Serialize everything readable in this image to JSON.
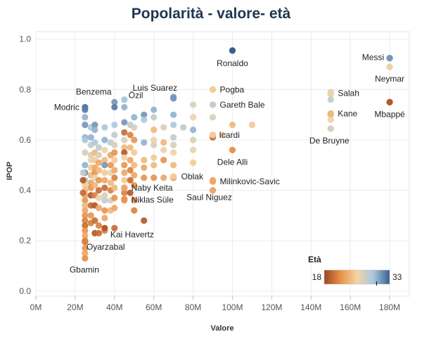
{
  "chart_data": {
    "type": "scatter",
    "title": "Popolarità - valore- età",
    "xlabel": "Valore",
    "ylabel": "IPOP",
    "xlim": [
      0,
      190
    ],
    "ylim": [
      -0.02,
      1.03
    ],
    "x_ticks": [
      0,
      20,
      40,
      60,
      80,
      100,
      120,
      140,
      160,
      180
    ],
    "x_tick_labels": [
      "0M",
      "20M",
      "40M",
      "60M",
      "80M",
      "100M",
      "120M",
      "140M",
      "160M",
      "180M"
    ],
    "y_ticks": [
      0.0,
      0.2,
      0.4,
      0.6,
      0.8,
      1.0
    ],
    "y_tick_labels": [
      "0.0",
      "0.2",
      "0.4",
      "0.6",
      "0.8",
      "1.0"
    ],
    "grid": true,
    "color_legend": {
      "title": "Età",
      "min": 18,
      "max": 33,
      "marker": 30,
      "placement": "bottom-right",
      "colors": [
        "#a0441f",
        "#e8914a",
        "#f6d3a3",
        "#a8c8e0",
        "#3a5f8e"
      ]
    },
    "annotated_points": [
      {
        "label": "Ronaldo",
        "x": 100,
        "y": 0.955,
        "age": 33
      },
      {
        "label": "Messi",
        "x": 180,
        "y": 0.925,
        "age": 31
      },
      {
        "label": "Neymar",
        "x": 180,
        "y": 0.89,
        "age": 26
      },
      {
        "label": "Benzema",
        "x": 25,
        "y": 0.73,
        "age": 30
      },
      {
        "label": "Modric",
        "x": 25,
        "y": 0.73,
        "age": 32
      },
      {
        "label": "Luis Suarez",
        "x": 70,
        "y": 0.765,
        "age": 31
      },
      {
        "label": "Özil",
        "x": 45,
        "y": 0.76,
        "age": 29
      },
      {
        "label": "Pogba",
        "x": 90,
        "y": 0.8,
        "age": 25
      },
      {
        "label": "Gareth Bale",
        "x": 90,
        "y": 0.74,
        "age": 28
      },
      {
        "label": "Salah",
        "x": 150,
        "y": 0.785,
        "age": 26
      },
      {
        "label": "Kane",
        "x": 150,
        "y": 0.705,
        "age": 24
      },
      {
        "label": "Mbappé",
        "x": 180,
        "y": 0.75,
        "age": 19
      },
      {
        "label": "De Bruyne",
        "x": 150,
        "y": 0.645,
        "age": 27
      },
      {
        "label": "Icardi",
        "x": 90,
        "y": 0.62,
        "age": 25
      },
      {
        "label": "Dele Alli",
        "x": 100,
        "y": 0.56,
        "age": 22
      },
      {
        "label": "Oblak",
        "x": 70,
        "y": 0.455,
        "age": 25
      },
      {
        "label": "Milinkovic-Savic",
        "x": 90,
        "y": 0.435,
        "age": 23
      },
      {
        "label": "Naby Keita",
        "x": 45,
        "y": 0.41,
        "age": 23
      },
      {
        "label": "Saul Niguez",
        "x": 90,
        "y": 0.4,
        "age": 23
      },
      {
        "label": "Niklas Süle",
        "x": 45,
        "y": 0.365,
        "age": 22
      },
      {
        "label": "Kai Havertz",
        "x": 35,
        "y": 0.25,
        "age": 19
      },
      {
        "label": "Oyarzabal",
        "x": 25,
        "y": 0.195,
        "age": 21
      },
      {
        "label": "Gbamin",
        "x": 25,
        "y": 0.13,
        "age": 22
      }
    ],
    "points": [
      [
        25,
        0.72,
        32
      ],
      [
        25,
        0.69,
        30
      ],
      [
        25,
        0.66,
        31
      ],
      [
        25,
        0.61,
        30
      ],
      [
        25,
        0.6,
        29
      ],
      [
        25,
        0.55,
        27
      ],
      [
        25,
        0.5,
        30
      ],
      [
        25,
        0.47,
        31
      ],
      [
        25,
        0.44,
        29
      ],
      [
        25,
        0.42,
        25
      ],
      [
        25,
        0.4,
        24
      ],
      [
        25,
        0.38,
        23
      ],
      [
        25,
        0.36,
        22
      ],
      [
        25,
        0.34,
        24
      ],
      [
        25,
        0.32,
        23
      ],
      [
        25,
        0.3,
        22
      ],
      [
        25,
        0.28,
        21
      ],
      [
        25,
        0.26,
        20
      ],
      [
        25,
        0.24,
        22
      ],
      [
        25,
        0.22,
        23
      ],
      [
        25,
        0.2,
        21
      ],
      [
        25,
        0.17,
        22
      ],
      [
        25,
        0.15,
        23
      ],
      [
        24,
        0.47,
        28
      ],
      [
        24,
        0.44,
        19
      ],
      [
        24,
        0.39,
        20
      ],
      [
        28,
        0.65,
        29
      ],
      [
        28,
        0.61,
        30
      ],
      [
        28,
        0.58,
        28
      ],
      [
        28,
        0.54,
        27
      ],
      [
        28,
        0.52,
        26
      ],
      [
        28,
        0.49,
        25
      ],
      [
        28,
        0.46,
        24
      ],
      [
        28,
        0.43,
        23
      ],
      [
        28,
        0.41,
        22
      ],
      [
        28,
        0.38,
        19
      ],
      [
        28,
        0.34,
        20
      ],
      [
        28,
        0.3,
        22
      ],
      [
        28,
        0.27,
        21
      ],
      [
        30,
        0.66,
        31
      ],
      [
        30,
        0.64,
        30
      ],
      [
        30,
        0.59,
        29
      ],
      [
        30,
        0.55,
        24
      ],
      [
        30,
        0.52,
        25
      ],
      [
        30,
        0.49,
        23
      ],
      [
        30,
        0.47,
        22
      ],
      [
        30,
        0.45,
        26
      ],
      [
        30,
        0.42,
        24
      ],
      [
        30,
        0.38,
        21
      ],
      [
        30,
        0.34,
        19
      ],
      [
        30,
        0.28,
        20
      ],
      [
        30,
        0.23,
        19
      ],
      [
        32,
        0.57,
        28
      ],
      [
        32,
        0.54,
        27
      ],
      [
        32,
        0.51,
        23
      ],
      [
        32,
        0.48,
        24
      ],
      [
        32,
        0.44,
        22
      ],
      [
        32,
        0.4,
        20
      ],
      [
        32,
        0.37,
        26
      ],
      [
        32,
        0.33,
        23
      ],
      [
        32,
        0.26,
        21
      ],
      [
        32,
        0.23,
        20
      ],
      [
        35,
        0.65,
        29
      ],
      [
        35,
        0.6,
        30
      ],
      [
        35,
        0.56,
        26
      ],
      [
        35,
        0.52,
        24
      ],
      [
        35,
        0.5,
        31
      ],
      [
        35,
        0.47,
        25
      ],
      [
        35,
        0.44,
        23
      ],
      [
        35,
        0.41,
        20
      ],
      [
        35,
        0.38,
        27
      ],
      [
        35,
        0.36,
        28
      ],
      [
        35,
        0.32,
        22
      ],
      [
        35,
        0.29,
        23
      ],
      [
        35,
        0.24,
        21
      ],
      [
        38,
        0.59,
        28
      ],
      [
        38,
        0.54,
        23
      ],
      [
        38,
        0.5,
        22
      ],
      [
        38,
        0.47,
        26
      ],
      [
        38,
        0.43,
        24
      ],
      [
        38,
        0.4,
        21
      ],
      [
        38,
        0.36,
        27
      ],
      [
        38,
        0.32,
        24
      ],
      [
        40,
        0.75,
        31
      ],
      [
        40,
        0.73,
        32
      ],
      [
        40,
        0.66,
        29
      ],
      [
        40,
        0.62,
        28
      ],
      [
        40,
        0.58,
        27
      ],
      [
        40,
        0.55,
        22
      ],
      [
        40,
        0.52,
        25
      ],
      [
        40,
        0.48,
        23
      ],
      [
        40,
        0.45,
        21
      ],
      [
        40,
        0.41,
        24
      ],
      [
        40,
        0.37,
        22
      ],
      [
        40,
        0.33,
        23
      ],
      [
        40,
        0.25,
        20
      ],
      [
        45,
        0.76,
        29
      ],
      [
        45,
        0.73,
        30
      ],
      [
        45,
        0.67,
        31
      ],
      [
        45,
        0.63,
        20
      ],
      [
        45,
        0.6,
        27
      ],
      [
        45,
        0.57,
        24
      ],
      [
        45,
        0.55,
        19
      ],
      [
        45,
        0.53,
        26
      ],
      [
        45,
        0.5,
        22
      ],
      [
        45,
        0.47,
        23
      ],
      [
        45,
        0.44,
        25
      ],
      [
        45,
        0.41,
        18
      ],
      [
        45,
        0.39,
        21
      ],
      [
        45,
        0.36,
        22
      ],
      [
        48,
        0.66,
        28
      ],
      [
        48,
        0.62,
        21
      ],
      [
        48,
        0.57,
        24
      ],
      [
        48,
        0.52,
        23
      ],
      [
        48,
        0.48,
        21
      ],
      [
        48,
        0.44,
        20
      ],
      [
        48,
        0.39,
        19
      ],
      [
        50,
        0.69,
        30
      ],
      [
        50,
        0.65,
        27
      ],
      [
        50,
        0.6,
        22
      ],
      [
        50,
        0.55,
        25
      ],
      [
        50,
        0.5,
        24
      ],
      [
        50,
        0.46,
        23
      ],
      [
        50,
        0.42,
        22
      ],
      [
        50,
        0.36,
        22
      ],
      [
        50,
        0.32,
        21
      ],
      [
        55,
        0.7,
        31
      ],
      [
        55,
        0.68,
        29
      ],
      [
        55,
        0.59,
        30
      ],
      [
        55,
        0.52,
        24
      ],
      [
        55,
        0.49,
        23
      ],
      [
        55,
        0.45,
        22
      ],
      [
        55,
        0.28,
        19
      ],
      [
        60,
        0.72,
        30
      ],
      [
        60,
        0.69,
        28
      ],
      [
        60,
        0.64,
        24
      ],
      [
        60,
        0.6,
        26
      ],
      [
        60,
        0.58,
        27
      ],
      [
        60,
        0.53,
        25
      ],
      [
        60,
        0.5,
        24
      ],
      [
        60,
        0.45,
        22
      ],
      [
        65,
        0.65,
        27
      ],
      [
        65,
        0.59,
        24
      ],
      [
        65,
        0.56,
        26
      ],
      [
        65,
        0.52,
        22
      ],
      [
        65,
        0.45,
        23
      ],
      [
        70,
        0.77,
        31
      ],
      [
        70,
        0.7,
        30
      ],
      [
        70,
        0.66,
        29
      ],
      [
        70,
        0.61,
        28
      ],
      [
        70,
        0.58,
        27
      ],
      [
        70,
        0.55,
        26
      ],
      [
        70,
        0.5,
        24
      ],
      [
        70,
        0.45,
        22
      ],
      [
        75,
        0.65,
        28
      ],
      [
        80,
        0.74,
        27
      ],
      [
        80,
        0.69,
        26
      ],
      [
        80,
        0.64,
        30
      ],
      [
        80,
        0.6,
        27
      ],
      [
        80,
        0.56,
        26
      ],
      [
        80,
        0.51,
        25
      ],
      [
        90,
        0.8,
        25
      ],
      [
        90,
        0.74,
        28
      ],
      [
        90,
        0.69,
        27
      ],
      [
        90,
        0.62,
        21
      ],
      [
        90,
        0.61,
        20
      ],
      [
        90,
        0.44,
        23
      ],
      [
        90,
        0.4,
        23
      ],
      [
        95,
        0.62,
        25
      ],
      [
        100,
        0.955,
        33
      ],
      [
        100,
        0.66,
        24
      ],
      [
        100,
        0.56,
        22
      ],
      [
        110,
        0.66,
        25
      ],
      [
        150,
        0.79,
        27
      ],
      [
        150,
        0.78,
        26
      ],
      [
        150,
        0.76,
        28
      ],
      [
        150,
        0.7,
        24
      ],
      [
        150,
        0.68,
        26
      ],
      [
        150,
        0.645,
        27
      ],
      [
        180,
        0.925,
        31
      ],
      [
        180,
        0.89,
        26
      ],
      [
        180,
        0.75,
        19
      ]
    ]
  }
}
